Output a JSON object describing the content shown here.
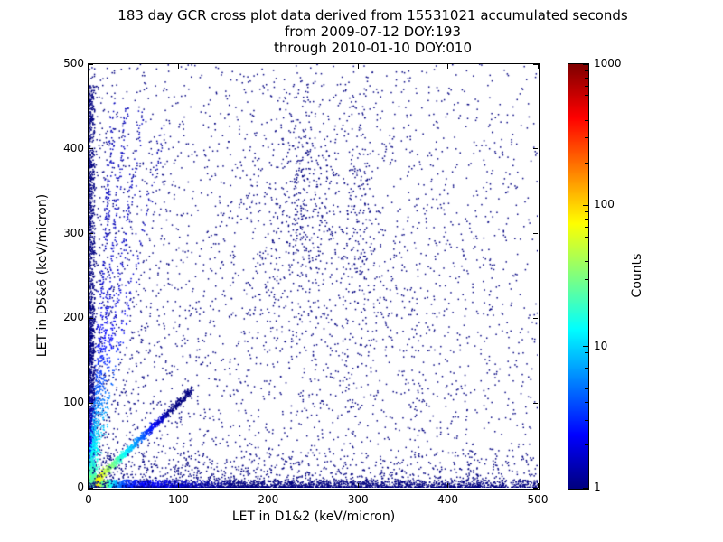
{
  "figure": {
    "title_line1": "183 day GCR cross plot data derived from 15531021 accumulated seconds",
    "title_line2": "from 2009-07-12 DOY:193",
    "title_line3": "through 2010-01-10 DOY:010",
    "duration_days": 183,
    "accumulated_seconds": 15531021,
    "start_date": "2009-07-12",
    "start_doy": "193",
    "end_date": "2010-01-10",
    "end_doy": "010"
  },
  "chart_data": {
    "type": "scatter",
    "title": "183 day GCR cross plot data derived from 15531021 accumulated seconds from 2009-07-12 DOY:193 through 2010-01-10 DOY:010",
    "xlabel": "LET in D1&2 (keV/micron)",
    "ylabel": "LET in D5&6 (keV/micron)",
    "xlim": [
      0,
      500
    ],
    "ylim": [
      0,
      500
    ],
    "xticks": [
      0,
      100,
      200,
      300,
      400,
      500
    ],
    "yticks": [
      0,
      100,
      200,
      300,
      400,
      500
    ],
    "grid": false,
    "background_color": "#ffffff",
    "colorbar": {
      "label": "Counts",
      "scale": "log",
      "min": 1,
      "max": 1000,
      "ticks": [
        1,
        10,
        100,
        1000
      ],
      "colormap": "jet",
      "position": "right"
    },
    "description": "2D density scatter (cross plot) of linear energy transfer measured in detectors D1&2 vs D5&6. Very dense hot spot (counts up to ~1000, red/yellow) at the origin, bright band along both axes fading from red/yellow near 0 to dark blue by ~100 keV/micron, a yellow-green-to-blue diagonal correlation streak from the origin to ~110 keV/micron, several faint near-vertical rays fanning up from the origin between x~20-80, a sparse diffuse blue cloud over the whole quadrant that thins with distance from the axes, and mild clumping near (240,360) and (300,330).",
    "seed": 1357924,
    "point_clusters": [
      {
        "kind": "background",
        "n": 2400,
        "xpow": 1.7,
        "ypow": 1.7,
        "count": 1
      },
      {
        "kind": "background",
        "n": 900,
        "xpow": 1.05,
        "ypow": 1.05,
        "count": 1
      },
      {
        "kind": "gauss",
        "n": 500,
        "cx": 250,
        "cy": 330,
        "sx": 60,
        "sy": 95,
        "count": 1
      },
      {
        "kind": "gauss",
        "n": 160,
        "cx": 237,
        "cy": 360,
        "sx": 12,
        "sy": 70,
        "count": 1
      },
      {
        "kind": "gauss",
        "n": 140,
        "cx": 300,
        "cy": 330,
        "sx": 10,
        "sy": 85,
        "count": 1
      },
      {
        "kind": "gauss",
        "n": 180,
        "cx": 320,
        "cy": 180,
        "sx": 90,
        "sy": 60,
        "count": 1
      },
      {
        "kind": "xband",
        "n": 3000,
        "xmax": 500,
        "xpow": 2.6,
        "ymax": 9,
        "ypow": 2.0,
        "cpeak": 700,
        "cdecay": 6,
        "cfloor": 4,
        "ctail": 120
      },
      {
        "kind": "yband",
        "n": 2400,
        "ymax": 475,
        "ypow": 2.2,
        "xmax": 7,
        "xpow": 2.0,
        "cpeak": 500,
        "cdecay": 6,
        "cfloor": 3,
        "ctail": 110
      },
      {
        "kind": "core",
        "n": 2200,
        "rmax": 17,
        "rpow": 1.9,
        "cpeak": 1000,
        "cdecay": 4,
        "cfloor": 8
      },
      {
        "kind": "diagonal",
        "n": 1100,
        "tmax": 115,
        "tpow": 1.5,
        "jitter": 2.2,
        "cpeak": 150,
        "cdecay": 16,
        "cfloor": 2.5,
        "ctail": 60
      },
      {
        "kind": "ray",
        "n": 420,
        "xtop": 26,
        "ytop": 455,
        "ypow": 2.1,
        "jitter": 1.6,
        "cpeak": 30,
        "cdecay": 50,
        "cfloor": 1.5
      },
      {
        "kind": "ray",
        "n": 380,
        "xtop": 40,
        "ytop": 450,
        "ypow": 2.2,
        "jitter": 1.8,
        "cpeak": 30,
        "cdecay": 50,
        "cfloor": 1.5
      },
      {
        "kind": "ray",
        "n": 320,
        "xtop": 58,
        "ytop": 445,
        "ypow": 2.3,
        "jitter": 2.0,
        "cpeak": 30,
        "cdecay": 50,
        "cfloor": 1.5
      },
      {
        "kind": "ray",
        "n": 220,
        "xtop": 82,
        "ytop": 430,
        "ypow": 2.4,
        "jitter": 2.4,
        "cpeak": 25,
        "cdecay": 60,
        "cfloor": 1.3
      },
      {
        "kind": "lowband",
        "n": 900,
        "xmax": 500,
        "xpow": 1.3,
        "ymax": 42,
        "ypow": 2.4,
        "count": 1
      }
    ]
  }
}
